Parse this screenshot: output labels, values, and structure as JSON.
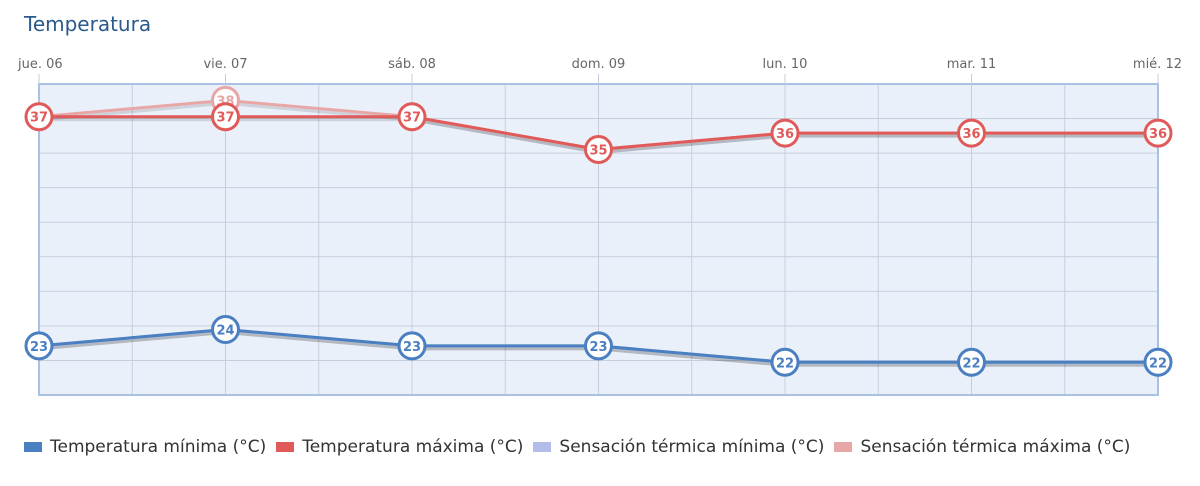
{
  "chart_data": {
    "type": "line",
    "title": "Temperatura",
    "categories": [
      "jue. 06",
      "vie. 07",
      "sáb. 08",
      "dom. 09",
      "lun. 10",
      "mar. 11",
      "mié. 12"
    ],
    "ylim": [
      20,
      39
    ],
    "grid": true,
    "legend_position": "bottom",
    "series": [
      {
        "name": "Temperatura mínima (°C)",
        "values": [
          23,
          24,
          23,
          23,
          22,
          22,
          22
        ],
        "color": "#4a7fc1",
        "markers": true
      },
      {
        "name": "Temperatura máxima (°C)",
        "values": [
          37,
          37,
          37,
          35,
          36,
          36,
          36
        ],
        "color": "#e05a5a",
        "markers": true
      },
      {
        "name": "Sensación térmica mínima (°C)",
        "values": [
          23,
          24,
          23,
          23,
          22,
          22,
          22
        ],
        "color": "#b3bde9",
        "markers": false
      },
      {
        "name": "Sensación térmica máxima (°C)",
        "values": [
          37,
          38,
          37,
          35,
          36,
          36,
          36
        ],
        "color": "#e8a7a7",
        "markers": true
      }
    ]
  }
}
